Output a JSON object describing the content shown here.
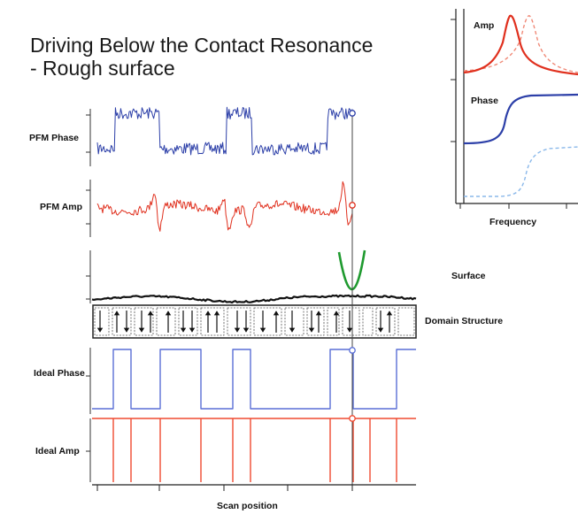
{
  "title": {
    "line1": "Driving Below the Contact Resonance",
    "line2": " - Rough surface"
  },
  "labels": {
    "pfm_phase": "PFM Phase",
    "pfm_amp": "PFM Amp",
    "surface": "Surface",
    "domain_structure": "Domain Structure",
    "ideal_phase": "Ideal Phase",
    "ideal_amp": "Ideal Amp",
    "scan_position": "Scan position"
  },
  "inset": {
    "amp_label": "Amp",
    "phase_label": "Phase",
    "frequency_label": "Frequency"
  },
  "domains": {
    "arrows": [
      "down",
      "up",
      "down",
      "down",
      "up",
      "up",
      "down",
      "down",
      "up",
      "up",
      "down",
      "down",
      "down",
      "up",
      "down",
      "down",
      "up",
      "up",
      "down",
      "down",
      "up"
    ]
  },
  "colors": {
    "phase_blue": "#2c3fa8",
    "amp_red": "#e0301e",
    "ideal_blue": "#5a6fd6",
    "ideal_red": "#ef4a30",
    "surface_black": "#111111",
    "tip_green": "#1f9a2f",
    "inset_light_red": "#f08a78",
    "inset_light_blue": "#8ab8ea"
  }
}
